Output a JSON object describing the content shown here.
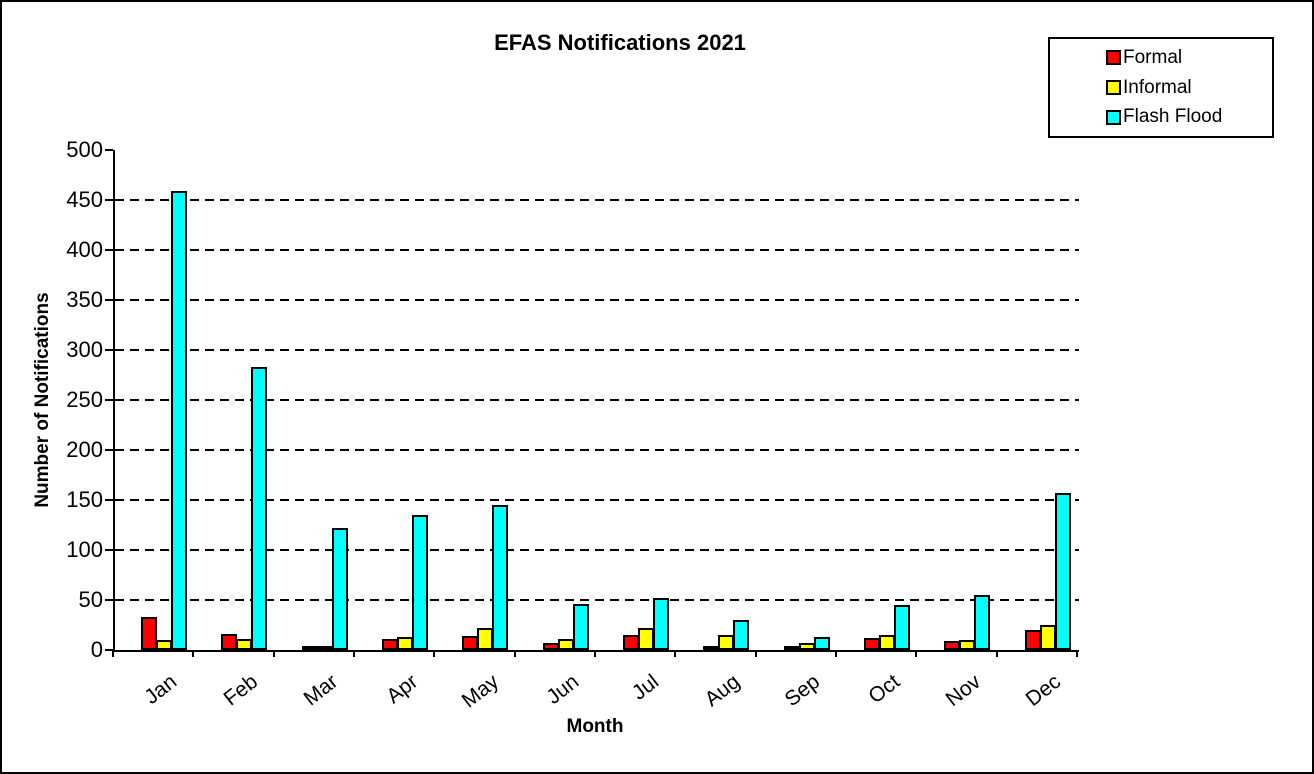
{
  "title": "EFAS Notifications 2021",
  "y_axis": {
    "label": "Number of Notifications"
  },
  "x_axis": {
    "label": "Month"
  },
  "legend": {
    "position": "top-right",
    "items": [
      {
        "label": "Formal",
        "color": "#ff0000"
      },
      {
        "label": "Informal",
        "color": "#ffff00"
      },
      {
        "label": "Flash Flood",
        "color": "#00ffff"
      }
    ]
  },
  "chart_data": {
    "type": "bar",
    "title": "EFAS Notifications 2021",
    "xlabel": "Month",
    "ylabel": "Number of Notifications",
    "categories": [
      "Jan",
      "Feb",
      "Mar",
      "Apr",
      "May",
      "Jun",
      "Jul",
      "Aug",
      "Sep",
      "Oct",
      "Nov",
      "Dec"
    ],
    "series": [
      {
        "name": "Formal",
        "color": "#ff0000",
        "values": [
          33,
          16,
          3,
          11,
          14,
          7,
          15,
          2,
          2,
          12,
          9,
          20
        ]
      },
      {
        "name": "Informal",
        "color": "#ffff00",
        "values": [
          10,
          11,
          1,
          13,
          22,
          11,
          22,
          15,
          7,
          15,
          10,
          25
        ]
      },
      {
        "name": "Flash Flood",
        "color": "#00ffff",
        "values": [
          459,
          283,
          122,
          135,
          145,
          46,
          52,
          30,
          13,
          45,
          55,
          157
        ]
      }
    ],
    "ylim": [
      0,
      500
    ],
    "ytick_step": 50,
    "ytick_labels": [
      "0",
      "50",
      "100",
      "150",
      "200",
      "250",
      "300",
      "350",
      "400",
      "450",
      "500"
    ],
    "grid": "dashed horizontal lines at every 50 from 50 to 450",
    "legend_position": "top-right",
    "bar_border_color": "#000000",
    "background_color": "#ffffff"
  }
}
